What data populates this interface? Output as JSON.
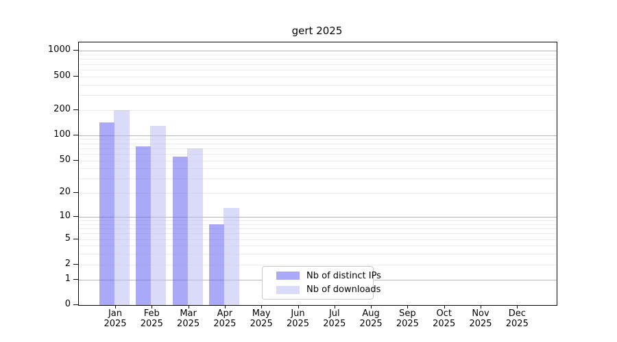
{
  "chart_data": {
    "type": "bar",
    "title": "gert 2025",
    "scale": "log10(1+x)",
    "categories": [
      "Jan",
      "Feb",
      "Mar",
      "Apr",
      "May",
      "Jun",
      "Jul",
      "Aug",
      "Sep",
      "Oct",
      "Nov",
      "Dec"
    ],
    "x_tick_year": "2025",
    "series": [
      {
        "name": "Nb of distinct IPs",
        "color": "#a9a9f7",
        "fill": "rgba(83,83,239,0.5)",
        "values": [
          142,
          74,
          55,
          8,
          0,
          0,
          0,
          0,
          0,
          0,
          0,
          0
        ]
      },
      {
        "name": "Nb of downloads",
        "color": "#dadaf9",
        "fill": "rgba(181,181,243,0.5)",
        "values": [
          200,
          130,
          70,
          13,
          0,
          0,
          0,
          0,
          0,
          0,
          0,
          0
        ]
      }
    ],
    "ylim": [
      0,
      1000
    ],
    "yticks": [
      0,
      1,
      2,
      5,
      10,
      20,
      50,
      100,
      200,
      500,
      1000
    ],
    "major_gridlines": [
      1,
      10,
      100,
      1000
    ],
    "grid": true,
    "legend_position": "lower-center"
  },
  "legend": {
    "items": [
      {
        "label": "Nb of distinct IPs",
        "color": "#a9a9f7"
      },
      {
        "label": "Nb of downloads",
        "color": "#dadaf9"
      }
    ]
  },
  "colors": {
    "major_grid": "#b4b4b4",
    "minor_grid": "#ececec",
    "axis": "#000000",
    "background": "#ffffff"
  }
}
